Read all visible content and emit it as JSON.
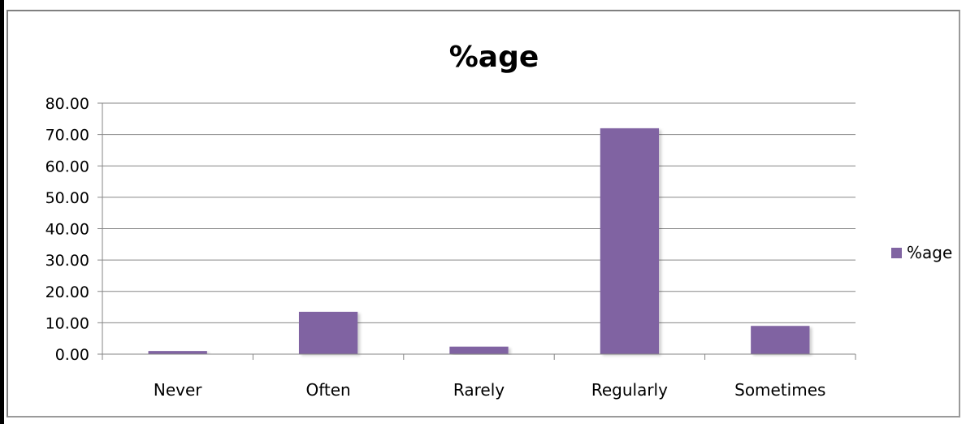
{
  "chart_data": {
    "type": "bar",
    "title": "%age",
    "xlabel": "",
    "ylabel": "",
    "categories": [
      "Never",
      "Often",
      "Rarely",
      "Regularly",
      "Sometimes"
    ],
    "series": [
      {
        "name": "%age",
        "values": [
          1.0,
          13.5,
          2.4,
          72.0,
          9.0
        ],
        "color": "#8064A2"
      }
    ],
    "ylim": [
      0,
      80
    ],
    "yticks": [
      "0.00",
      "10.00",
      "20.00",
      "30.00",
      "40.00",
      "50.00",
      "60.00",
      "70.00",
      "80.00"
    ],
    "grid": true,
    "legend_position": "right"
  }
}
